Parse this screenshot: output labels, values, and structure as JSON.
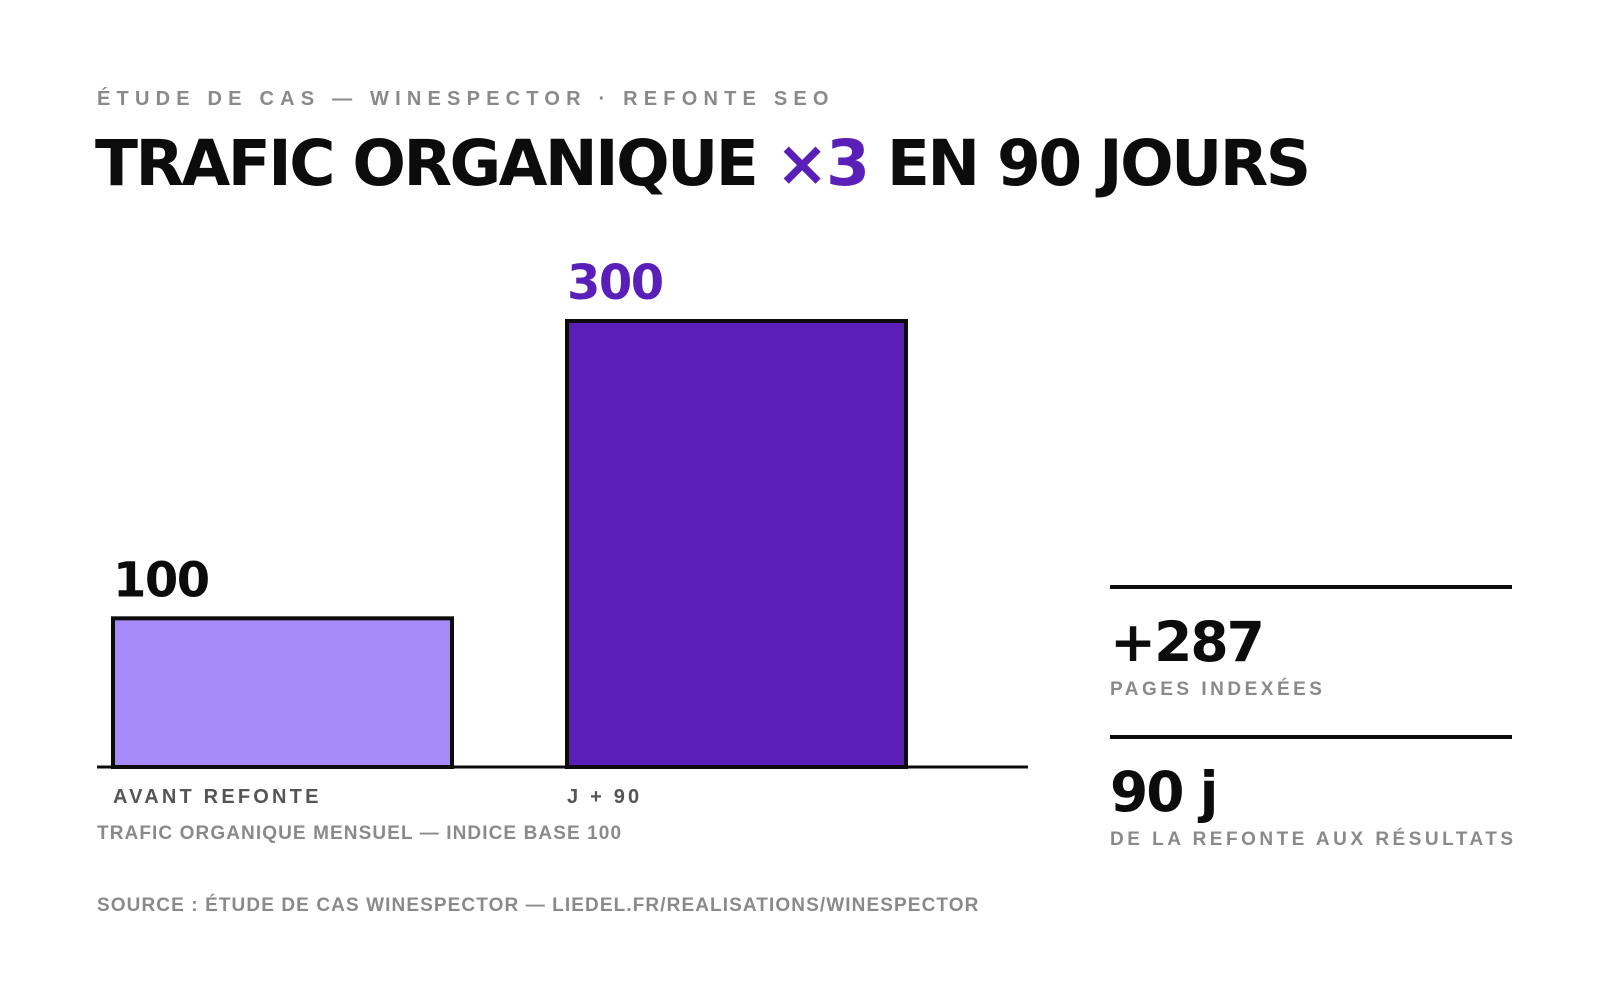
{
  "header": {
    "eyebrow": "ÉTUDE DE CAS — WINESPECTOR · REFONTE SEO",
    "title_part1": "TRAFIC ORGANIQUE ",
    "title_accent": "×3",
    "title_part2": " EN 90 JOURS"
  },
  "chart_data": {
    "type": "bar",
    "categories": [
      "AVANT REFONTE",
      "J + 90"
    ],
    "values": [
      100,
      300
    ],
    "value_labels": [
      "100",
      "300"
    ],
    "bar_colors": [
      "#a78bfa",
      "#5b1fb7"
    ],
    "value_label_colors": [
      "#0c0c0c",
      "#5a1fb8"
    ],
    "caption": "TRAFIC ORGANIQUE MENSUEL — INDICE BASE 100",
    "ylim": [
      0,
      300
    ],
    "grid": false
  },
  "kpis": [
    {
      "value": "+287",
      "label": "PAGES INDEXÉES"
    },
    {
      "value": "90 j",
      "label": "DE LA REFONTE AUX RÉSULTATS"
    }
  ],
  "footer": {
    "source": "SOURCE : ÉTUDE DE CAS WINESPECTOR — LIEDEL.FR/REALISATIONS/WINESPECTOR"
  },
  "colors": {
    "accent": "#5a1fb8",
    "text": "#0c0c0c",
    "muted": "#8a8a8a"
  }
}
